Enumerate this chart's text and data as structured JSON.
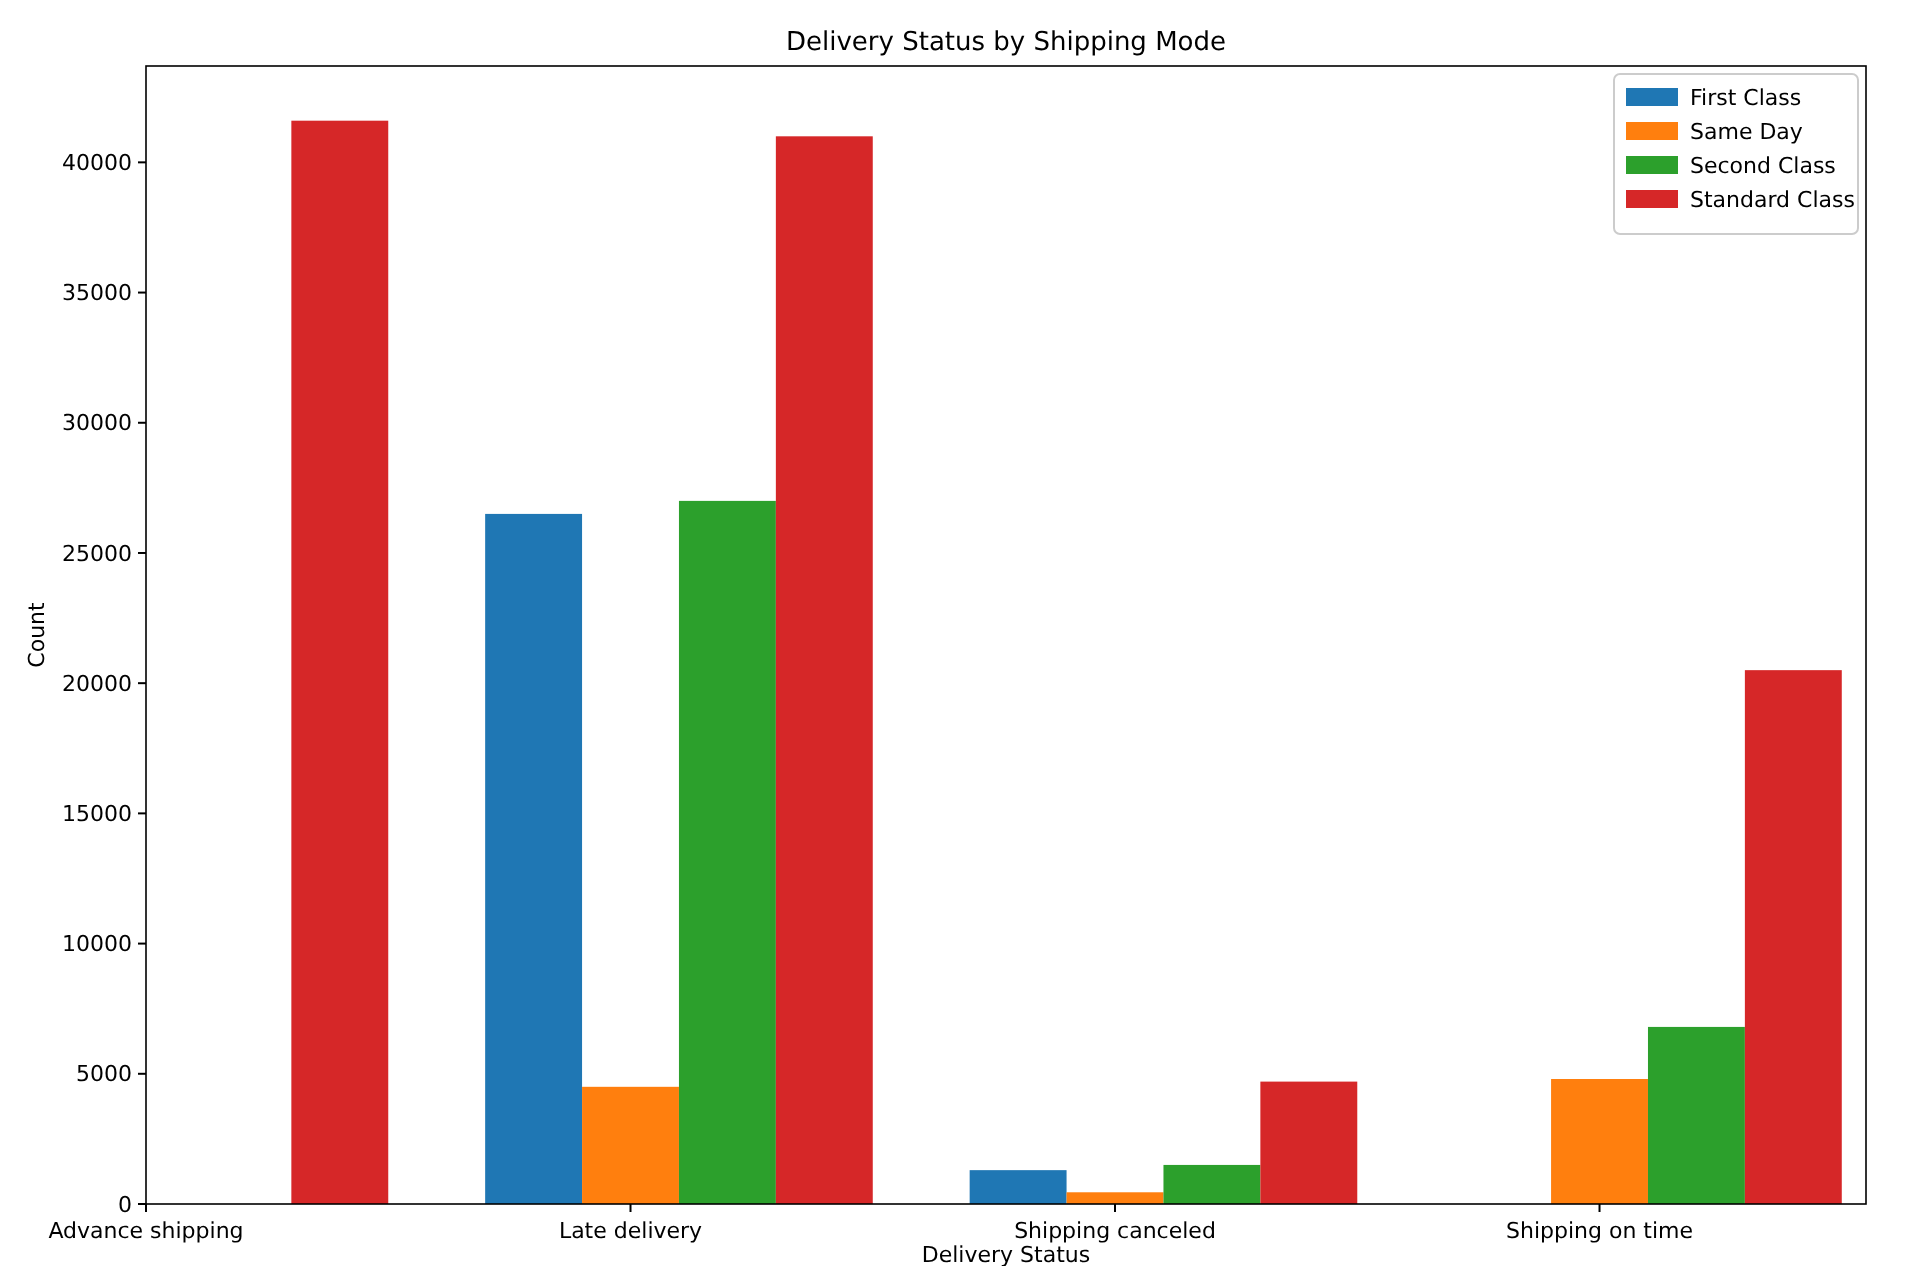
{
  "chart_data": {
    "type": "bar",
    "title": "Delivery Status by Shipping Mode",
    "xlabel": "Delivery Status",
    "ylabel": "Count",
    "categories": [
      "Advance shipping",
      "Late delivery",
      "Shipping canceled",
      "Shipping on time"
    ],
    "series": [
      {
        "name": "First Class",
        "color": "#1f77b4",
        "values": [
          null,
          26500,
          1300,
          null
        ]
      },
      {
        "name": "Same Day",
        "color": "#ff7f0e",
        "values": [
          null,
          4500,
          450,
          4800
        ]
      },
      {
        "name": "Second Class",
        "color": "#2ca02c",
        "values": [
          null,
          27000,
          1500,
          6800
        ]
      },
      {
        "name": "Standard Class",
        "color": "#d62728",
        "values": [
          41600,
          41000,
          4700,
          20500
        ]
      }
    ],
    "ylim": [
      0,
      43700
    ],
    "yticks": [
      0,
      5000,
      10000,
      15000,
      20000,
      25000,
      30000,
      35000,
      40000
    ],
    "grid": false,
    "legend": "top right"
  }
}
